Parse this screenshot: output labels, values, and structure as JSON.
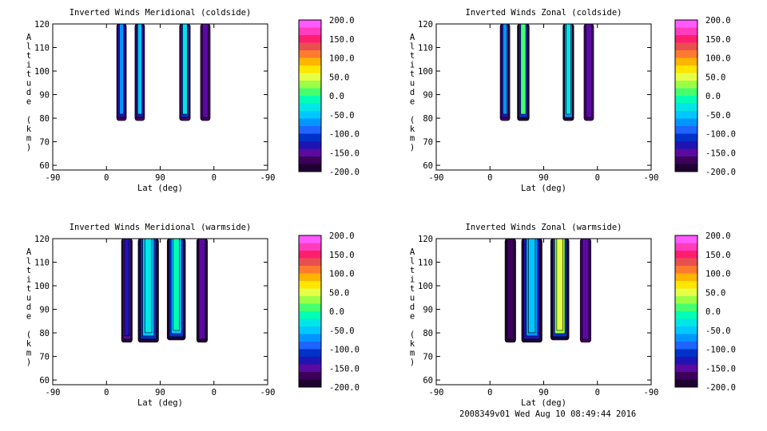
{
  "footer": "2008349v01 Wed Aug 10 08:49:44 2016",
  "colorbar": {
    "ticks": [
      "200.0",
      "150.0",
      "100.0",
      "50.0",
      "0.0",
      "-50.0",
      "-100.0",
      "-150.0",
      "-200.0"
    ],
    "colors": [
      "#ff5aff",
      "#ff3cbe",
      "#ff1e6e",
      "#e85050",
      "#ff7a2e",
      "#ffb400",
      "#ffe600",
      "#e6ff46",
      "#9bff46",
      "#46ff6e",
      "#00ffb4",
      "#00e6e6",
      "#00c8ff",
      "#0096ff",
      "#1e64ff",
      "#0032c8",
      "#1e14b4",
      "#5a0aa0",
      "#3c005a",
      "#1e0032"
    ]
  },
  "chart_data": [
    {
      "type": "contour",
      "title": "Inverted Winds Meridional (coldside)",
      "xlabel": "Lat (deg)",
      "ylabel": "Altitude (km)",
      "xticks": [
        "-90",
        "0",
        "90",
        "0",
        "-90"
      ],
      "yticks": [
        "60",
        "70",
        "80",
        "90",
        "100",
        "110",
        "120"
      ],
      "ylim": [
        58,
        120
      ],
      "zlim": [
        -200,
        200
      ],
      "columns": [
        {
          "x": 0.32,
          "width": 0.045,
          "alt_bottom": 79,
          "layers": [
            -175,
            -125,
            -75
          ]
        },
        {
          "x": 0.405,
          "width": 0.045,
          "alt_bottom": 79,
          "layers": [
            -175,
            -125,
            -40
          ]
        },
        {
          "x": 0.615,
          "width": 0.05,
          "alt_bottom": 79,
          "layers": [
            -175,
            -100,
            -20
          ]
        },
        {
          "x": 0.71,
          "width": 0.045,
          "alt_bottom": 79,
          "layers": [
            -175,
            -150
          ]
        }
      ]
    },
    {
      "type": "contour",
      "title": "Inverted Winds Zonal (coldside)",
      "xlabel": "Lat (deg)",
      "ylabel": "Altitude (km)",
      "xticks": [
        "-90",
        "0",
        "90",
        "0",
        "-90"
      ],
      "yticks": [
        "60",
        "70",
        "80",
        "90",
        "100",
        "110",
        "120"
      ],
      "ylim": [
        58,
        120
      ],
      "zlim": [
        -200,
        200
      ],
      "columns": [
        {
          "x": 0.32,
          "width": 0.045,
          "alt_bottom": 79,
          "layers": [
            -175,
            -125,
            -75
          ]
        },
        {
          "x": 0.405,
          "width": 0.055,
          "alt_bottom": 79,
          "layers": [
            -200,
            -100,
            20
          ]
        },
        {
          "x": 0.615,
          "width": 0.05,
          "alt_bottom": 79,
          "layers": [
            -200,
            -75,
            -30
          ]
        },
        {
          "x": 0.71,
          "width": 0.045,
          "alt_bottom": 79,
          "layers": [
            -175,
            -150
          ]
        }
      ]
    },
    {
      "type": "contour",
      "title": "Inverted Winds Meridional (warmside)",
      "xlabel": "Lat (deg)",
      "ylabel": "Altitude (km)",
      "xticks": [
        "-90",
        "0",
        "90",
        "0",
        "-90"
      ],
      "yticks": [
        "60",
        "70",
        "80",
        "90",
        "100",
        "110",
        "120"
      ],
      "ylim": [
        58,
        120
      ],
      "zlim": [
        -200,
        200
      ],
      "columns": [
        {
          "x": 0.345,
          "width": 0.05,
          "alt_bottom": 76,
          "layers": [
            -180,
            -150,
            -125
          ]
        },
        {
          "x": 0.445,
          "width": 0.095,
          "alt_bottom": 76,
          "layers": [
            -200,
            -100,
            -50,
            -20
          ]
        },
        {
          "x": 0.575,
          "width": 0.085,
          "alt_bottom": 77,
          "layers": [
            -200,
            -100,
            -50,
            -10
          ]
        },
        {
          "x": 0.695,
          "width": 0.05,
          "alt_bottom": 76,
          "layers": [
            -180,
            -150
          ]
        }
      ]
    },
    {
      "type": "contour",
      "title": "Inverted Winds Zonal (warmside)",
      "xlabel": "Lat (deg)",
      "ylabel": "Altitude (km)",
      "xticks": [
        "-90",
        "0",
        "90",
        "0",
        "-90"
      ],
      "yticks": [
        "60",
        "70",
        "80",
        "90",
        "100",
        "110",
        "120"
      ],
      "ylim": [
        58,
        120
      ],
      "zlim": [
        -200,
        200
      ],
      "columns": [
        {
          "x": 0.345,
          "width": 0.05,
          "alt_bottom": 76,
          "layers": [
            -180,
            -160
          ]
        },
        {
          "x": 0.445,
          "width": 0.095,
          "alt_bottom": 76,
          "layers": [
            -200,
            -125,
            -75,
            -40
          ]
        },
        {
          "x": 0.575,
          "width": 0.085,
          "alt_bottom": 77,
          "layers": [
            -200,
            -100,
            30,
            60
          ]
        },
        {
          "x": 0.695,
          "width": 0.05,
          "alt_bottom": 76,
          "layers": [
            -175,
            -150
          ]
        }
      ]
    }
  ]
}
